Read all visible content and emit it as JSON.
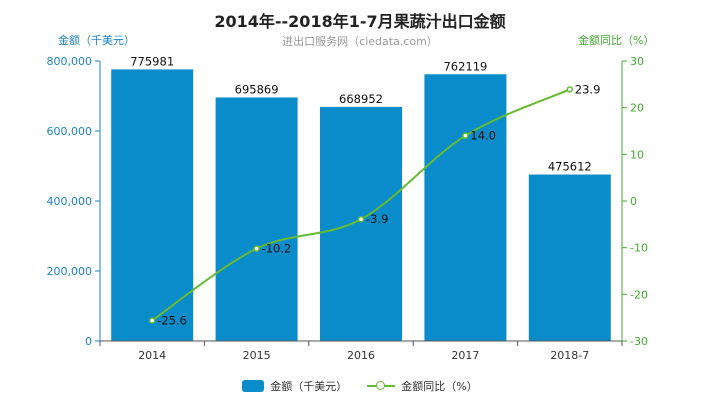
{
  "chart_data": {
    "type": "bar",
    "title": "2014年--2018年1-7月果蔬汁出口金额",
    "subtitle": "进出口服务网（ciedata.com）",
    "ylabel": "金额（千美元）",
    "y2label": "金额同比（%）",
    "categories": [
      "2014",
      "2015",
      "2016",
      "2017",
      "2018-7"
    ],
    "ylim": [
      0,
      800000
    ],
    "y2lim": [
      -30,
      30
    ],
    "yticks": [
      "0",
      "200,000",
      "400,000",
      "600,000",
      "800,000"
    ],
    "y2ticks": [
      "-30",
      "-20",
      "-10",
      "0",
      "10",
      "20",
      "30"
    ],
    "series": [
      {
        "name": "金额（千美元）",
        "type": "bar",
        "axis": "left",
        "values": [
          775981,
          695869,
          668952,
          762119,
          475612
        ],
        "labels": [
          "775981",
          "695869",
          "668952",
          "762119",
          "475612"
        ]
      },
      {
        "name": "金额同比（%）",
        "type": "line",
        "axis": "right",
        "values": [
          -25.6,
          -10.2,
          -3.9,
          14.0,
          23.9
        ],
        "labels": [
          "-25.6",
          "-10.2",
          "-3.9",
          "14.0",
          "23.9"
        ]
      }
    ],
    "colors": {
      "bar": "#0a8ccb",
      "line": "#66bb33",
      "left_axis": "#1f84c4",
      "right_axis": "#44aa33"
    },
    "grid": false,
    "legend": "bottom"
  }
}
